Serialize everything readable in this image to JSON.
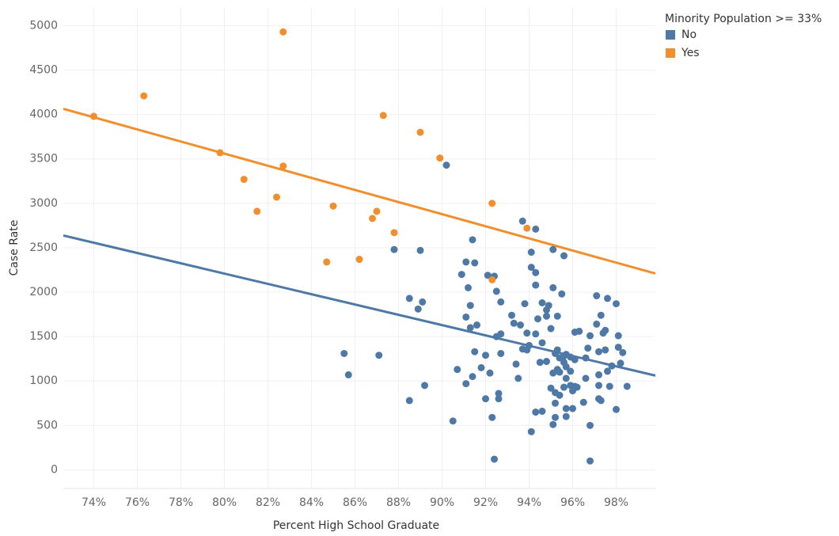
{
  "chart_data": {
    "type": "scatter",
    "x_label": "Percent High School Graduate",
    "y_label": "Case Rate",
    "legend_title": "Minority Population >= 33%",
    "legend_position": "top-right",
    "grid": true,
    "xlim": [
      72.6,
      99.8
    ],
    "ylim": [
      -210,
      5200
    ],
    "xticks": [
      {
        "value": 74,
        "label": "74%"
      },
      {
        "value": 76,
        "label": "76%"
      },
      {
        "value": 78,
        "label": "78%"
      },
      {
        "value": 80,
        "label": "80%"
      },
      {
        "value": 82,
        "label": "82%"
      },
      {
        "value": 84,
        "label": "84%"
      },
      {
        "value": 86,
        "label": "86%"
      },
      {
        "value": 88,
        "label": "88%"
      },
      {
        "value": 90,
        "label": "90%"
      },
      {
        "value": 92,
        "label": "92%"
      },
      {
        "value": 94,
        "label": "94%"
      },
      {
        "value": 96,
        "label": "96%"
      },
      {
        "value": 98,
        "label": "98%"
      }
    ],
    "yticks": [
      0,
      500,
      1000,
      1500,
      2000,
      2500,
      3000,
      3500,
      4000,
      4500,
      5000
    ],
    "series": [
      {
        "name": "No",
        "color": "#4e79a7",
        "trend": {
          "x": [
            72.6,
            99.8
          ],
          "y": [
            2638,
            1061
          ]
        },
        "x": [
          90.2,
          87.8,
          89.0,
          85.5,
          85.7,
          87.1,
          88.5,
          88.5,
          88.9,
          89.1,
          89.2,
          90.5,
          90.7,
          90.9,
          91.1,
          91.2,
          91.1,
          91.3,
          91.3,
          91.4,
          91.5,
          91.5,
          91.6,
          91.1,
          91.4,
          91.8,
          92.0,
          92.0,
          92.2,
          92.1,
          92.4,
          92.5,
          92.3,
          92.4,
          92.5,
          92.6,
          92.6,
          92.7,
          92.7,
          92.7,
          93.2,
          93.3,
          93.4,
          93.5,
          93.6,
          93.7,
          93.7,
          93.8,
          93.9,
          93.9,
          94.0,
          94.1,
          94.1,
          94.3,
          94.1,
          94.3,
          94.3,
          94.4,
          94.3,
          94.3,
          94.5,
          94.6,
          94.6,
          94.6,
          94.8,
          94.8,
          94.9,
          94.8,
          95.0,
          95.0,
          95.1,
          95.1,
          95.1,
          95.2,
          95.1,
          95.2,
          95.2,
          95.2,
          95.3,
          95.3,
          95.3,
          95.4,
          95.4,
          95.4,
          95.5,
          95.6,
          95.6,
          95.6,
          95.6,
          95.7,
          95.7,
          95.7,
          95.7,
          95.7,
          95.9,
          95.9,
          95.9,
          96.0,
          96.0,
          96.1,
          96.1,
          96.3,
          96.2,
          96.5,
          96.6,
          96.7,
          96.8,
          96.8,
          96.8,
          97.1,
          97.1,
          97.2,
          97.2,
          97.2,
          97.2,
          97.3,
          97.4,
          97.5,
          97.5,
          97.6,
          97.6,
          97.7,
          97.8,
          98.0,
          98.0,
          98.1,
          98.1,
          98.3,
          98.2,
          98.5,
          97.3,
          96.6,
          96.1
        ],
        "values": [
          3430,
          2480,
          2470,
          1310,
          1070,
          1290,
          780,
          1930,
          1810,
          1890,
          950,
          550,
          1130,
          2200,
          2340,
          2050,
          1720,
          1850,
          1600,
          2590,
          2330,
          1330,
          1630,
          970,
          1050,
          1150,
          1290,
          800,
          1090,
          2190,
          2180,
          2010,
          590,
          120,
          1500,
          860,
          800,
          1530,
          1890,
          1310,
          1740,
          1650,
          1190,
          1030,
          1630,
          2800,
          1360,
          1870,
          1540,
          1350,
          1400,
          2450,
          2280,
          2220,
          430,
          2710,
          2080,
          1700,
          650,
          1530,
          1210,
          660,
          1880,
          1430,
          1730,
          1800,
          1850,
          1220,
          920,
          1590,
          1090,
          2480,
          2050,
          1310,
          510,
          590,
          870,
          750,
          1130,
          1730,
          1350,
          840,
          1100,
          1260,
          1980,
          2410,
          1280,
          930,
          1210,
          1300,
          1030,
          690,
          600,
          1160,
          1270,
          950,
          1110,
          690,
          890,
          940,
          1550,
          1560,
          930,
          760,
          1030,
          1370,
          1510,
          500,
          100,
          1960,
          1640,
          1070,
          950,
          800,
          1330,
          1740,
          1540,
          1350,
          1570,
          1930,
          1110,
          940,
          1170,
          680,
          1870,
          1510,
          1380,
          1320,
          1200,
          940,
          780,
          1260,
          1240
        ]
      },
      {
        "name": "Yes",
        "color": "#f28e2b",
        "trend": {
          "x": [
            72.6,
            99.8
          ],
          "y": [
            4064,
            2210
          ]
        },
        "x": [
          74.0,
          76.3,
          79.8,
          80.9,
          81.5,
          82.4,
          82.7,
          82.7,
          84.7,
          85.0,
          86.2,
          86.8,
          87.0,
          87.3,
          87.8,
          89.0,
          89.9,
          92.3,
          92.3,
          93.9
        ],
        "values": [
          3980,
          4210,
          3570,
          3270,
          2910,
          3070,
          3420,
          4930,
          2340,
          2970,
          2370,
          2830,
          2910,
          3990,
          2670,
          3800,
          3510,
          3000,
          2140,
          2720
        ]
      }
    ]
  }
}
